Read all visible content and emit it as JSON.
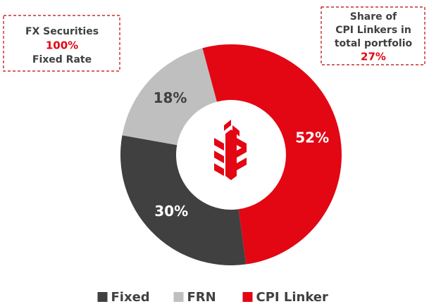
{
  "chart_data": {
    "type": "donut",
    "categories": [
      "CPI Linker",
      "Fixed",
      "FRN"
    ],
    "values": [
      52,
      30,
      18
    ],
    "value_labels": [
      "52%",
      "30%",
      "18%"
    ],
    "colors": [
      "#e30613",
      "#404040",
      "#bfbfbf"
    ],
    "legend_order": [
      "Fixed",
      "FRN",
      "CPI Linker"
    ],
    "annotations": {
      "left": [
        "FX  Securities",
        "100%",
        "Fixed Rate"
      ],
      "right": [
        "Share of",
        "CPI Linkers in",
        "total portfolio",
        "27%"
      ]
    }
  }
}
